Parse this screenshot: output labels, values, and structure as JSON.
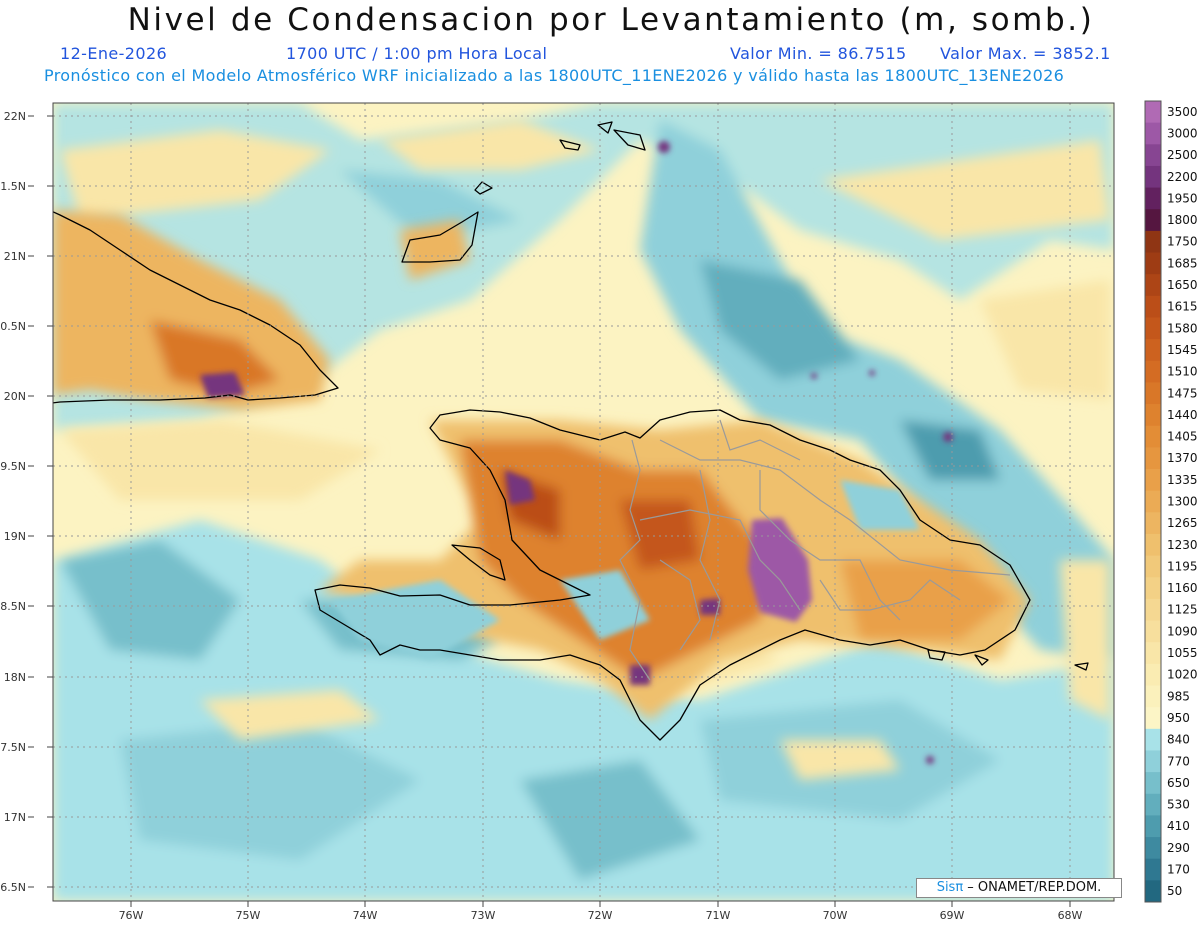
{
  "header": {
    "title": "Nivel de Condensacion por Levantamiento (m, somb.)",
    "date": "12-Ene-2026",
    "time": "1700 UTC / 1:00 pm Hora Local",
    "min_label": "Valor Min. = 86.7515",
    "max_label": "Valor Max. = 3852.1",
    "model_line": "Pronóstico con el Modelo Atmosférico WRF inicializado a las 1800UTC_11ENE2026 y válido hasta las  1800UTC_13ENE2026"
  },
  "map": {
    "lat_labels": [
      "22N",
      "1.5N",
      "21N",
      "0.5N",
      "20N",
      "9.5N",
      "19N",
      "8.5N",
      "18N",
      "7.5N",
      "17N",
      "6.5N"
    ],
    "lon_labels": [
      "76W",
      "75W",
      "74W",
      "73W",
      "72W",
      "71W",
      "70W",
      "69W",
      "68W"
    ],
    "credit_logo": "Sisπ",
    "credit_text": " – ONAMET/REP.DOM."
  },
  "colorbar": {
    "levels": [
      "3500",
      "3000",
      "2500",
      "2200",
      "1950",
      "1800",
      "1750",
      "1685",
      "1650",
      "1615",
      "1580",
      "1545",
      "1510",
      "1475",
      "1440",
      "1405",
      "1370",
      "1335",
      "1300",
      "1265",
      "1230",
      "1195",
      "1160",
      "1125",
      "1090",
      "1055",
      "1020",
      "985",
      "950",
      "840",
      "770",
      "650",
      "530",
      "410",
      "290",
      "170",
      "50"
    ],
    "colors": [
      "#b06ab4",
      "#9d58a6",
      "#874592",
      "#74347e",
      "#62215f",
      "#551640",
      "#8f3514",
      "#9e3c14",
      "#ad4516",
      "#bb4e18",
      "#c4571b",
      "#cd621f",
      "#d46c23",
      "#d97728",
      "#de822e",
      "#e38d36",
      "#e6963f",
      "#e9a049",
      "#ebab55",
      "#edb561",
      "#efc06d",
      "#f1c97a",
      "#f3d186",
      "#f5d892",
      "#f7df9d",
      "#f9e6a8",
      "#faecb2",
      "#fbf1bc",
      "#fcf5c6",
      "#a8e2e8",
      "#8fd0da",
      "#77bfcb",
      "#62aebd",
      "#4e9cae",
      "#3e8aa0",
      "#2f7891",
      "#226880"
    ]
  }
}
